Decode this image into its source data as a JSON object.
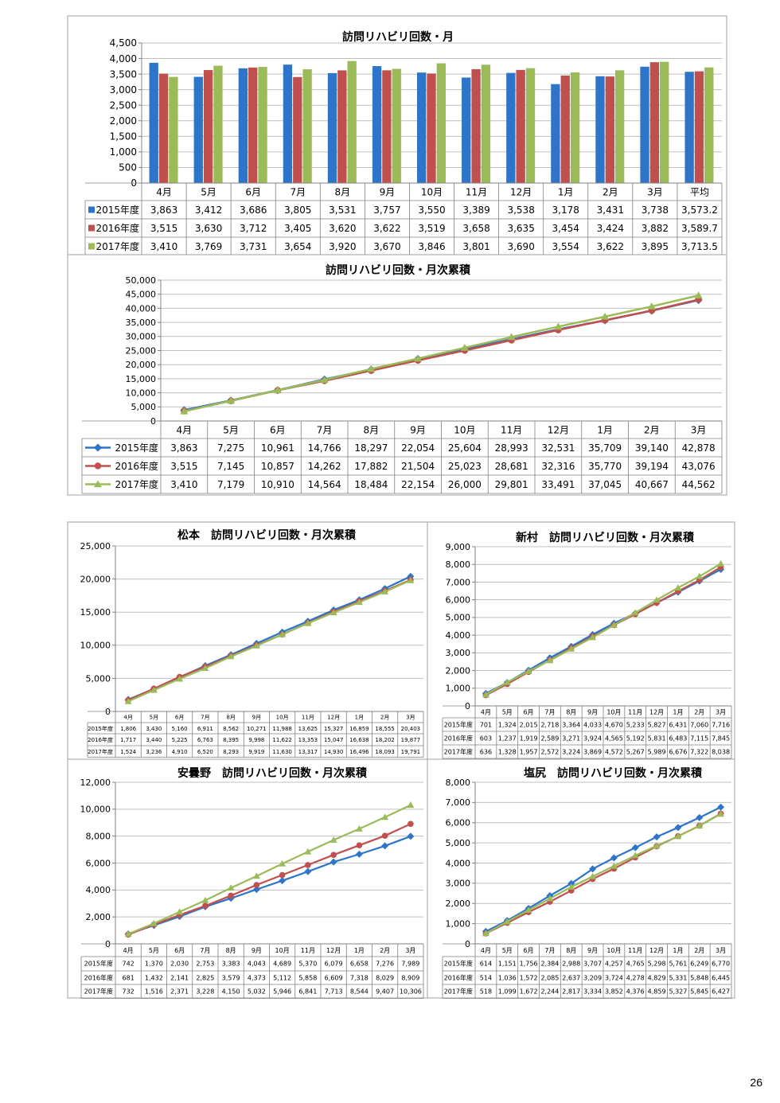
{
  "page": {
    "number": "26"
  },
  "colors": {
    "s2015": "#2E75C9",
    "s2016": "#C0504D",
    "s2017": "#9BBB59",
    "grid": "#bfbfbf",
    "border": "#a0a0a0"
  },
  "chart_data": [
    {
      "type": "bar",
      "title": "訪問リハビリ回数・月",
      "categories": [
        "4月",
        "5月",
        "6月",
        "7月",
        "8月",
        "9月",
        "10月",
        "11月",
        "12月",
        "1月",
        "2月",
        "3月",
        "平均"
      ],
      "ylim": [
        0,
        4500
      ],
      "yticks": [
        "0",
        "500",
        "1,000",
        "1,500",
        "2,000",
        "2,500",
        "3,000",
        "3,500",
        "4,000",
        "4,500"
      ],
      "series": [
        {
          "name": "2015年度",
          "values": [
            3863,
            3412,
            3686,
            3805,
            3531,
            3757,
            3550,
            3389,
            3538,
            3178,
            3431,
            3738,
            3573.2
          ],
          "labels": [
            "3,863",
            "3,412",
            "3,686",
            "3,805",
            "3,531",
            "3,757",
            "3,550",
            "3,389",
            "3,538",
            "3,178",
            "3,431",
            "3,738",
            "3,573.2"
          ]
        },
        {
          "name": "2016年度",
          "values": [
            3515,
            3630,
            3712,
            3405,
            3620,
            3622,
            3519,
            3658,
            3635,
            3454,
            3424,
            3882,
            3589.7
          ],
          "labels": [
            "3,515",
            "3,630",
            "3,712",
            "3,405",
            "3,620",
            "3,622",
            "3,519",
            "3,658",
            "3,635",
            "3,454",
            "3,424",
            "3,882",
            "3,589.7"
          ]
        },
        {
          "name": "2017年度",
          "values": [
            3410,
            3769,
            3731,
            3654,
            3920,
            3670,
            3846,
            3801,
            3690,
            3554,
            3622,
            3895,
            3713.5
          ],
          "labels": [
            "3,410",
            "3,769",
            "3,731",
            "3,654",
            "3,920",
            "3,670",
            "3,846",
            "3,801",
            "3,690",
            "3,554",
            "3,622",
            "3,895",
            "3,713.5"
          ]
        }
      ]
    },
    {
      "type": "line",
      "title": "訪問リハビリ回数・月次累積",
      "categories": [
        "4月",
        "5月",
        "6月",
        "7月",
        "8月",
        "9月",
        "10月",
        "11月",
        "12月",
        "1月",
        "2月",
        "3月"
      ],
      "ylim": [
        0,
        50000
      ],
      "yticks": [
        "0",
        "5,000",
        "10,000",
        "15,000",
        "20,000",
        "25,000",
        "30,000",
        "35,000",
        "40,000",
        "45,000",
        "50,000"
      ],
      "series": [
        {
          "name": "2015年度",
          "values": [
            3863,
            7275,
            10961,
            14766,
            18297,
            22054,
            25604,
            28993,
            32531,
            35709,
            39140,
            42878
          ],
          "labels": [
            "3,863",
            "7,275",
            "10,961",
            "14,766",
            "18,297",
            "22,054",
            "25,604",
            "28,993",
            "32,531",
            "35,709",
            "39,140",
            "42,878"
          ]
        },
        {
          "name": "2016年度",
          "values": [
            3515,
            7145,
            10857,
            14262,
            17882,
            21504,
            25023,
            28681,
            32316,
            35770,
            39194,
            43076
          ],
          "labels": [
            "3,515",
            "7,145",
            "10,857",
            "14,262",
            "17,882",
            "21,504",
            "25,023",
            "28,681",
            "32,316",
            "35,770",
            "39,194",
            "43,076"
          ]
        },
        {
          "name": "2017年度",
          "values": [
            3410,
            7179,
            10910,
            14564,
            18484,
            22154,
            26000,
            29801,
            33491,
            37045,
            40667,
            44562
          ],
          "labels": [
            "3,410",
            "7,179",
            "10,910",
            "14,564",
            "18,484",
            "22,154",
            "26,000",
            "29,801",
            "33,491",
            "37,045",
            "40,667",
            "44,562"
          ]
        }
      ]
    },
    {
      "type": "line",
      "title": "松本　訪問リハビリ回数・月次累積",
      "categories": [
        "4月",
        "5月",
        "6月",
        "7月",
        "8月",
        "9月",
        "10月",
        "11月",
        "12月",
        "1月",
        "2月",
        "3月"
      ],
      "ylim": [
        0,
        25000
      ],
      "yticks": [
        "0",
        "5,000",
        "10,000",
        "15,000",
        "20,000",
        "25,000"
      ],
      "series": [
        {
          "name": "2015年度",
          "values": [
            1806,
            3430,
            5160,
            6911,
            8562,
            10271,
            11988,
            13625,
            15327,
            16859,
            18555,
            20403
          ],
          "labels": [
            "1,806",
            "3,430",
            "5,160",
            "6,911",
            "8,562",
            "10,271",
            "11,988",
            "13,625",
            "15,327",
            "16,859",
            "18,555",
            "20,403"
          ]
        },
        {
          "name": "2016年度",
          "values": [
            1717,
            3440,
            5225,
            6763,
            8395,
            9998,
            11622,
            13353,
            15047,
            16638,
            18202,
            19877
          ],
          "labels": [
            "1,717",
            "3,440",
            "5,225",
            "6,763",
            "8,395",
            "9,998",
            "11,622",
            "13,353",
            "15,047",
            "16,638",
            "18,202",
            "19,877"
          ]
        },
        {
          "name": "2017年度",
          "values": [
            1524,
            3236,
            4910,
            6520,
            8293,
            9919,
            11630,
            13317,
            14930,
            16496,
            18093,
            19791
          ],
          "labels": [
            "1,524",
            "3,236",
            "4,910",
            "6,520",
            "8,293",
            "9,919",
            "11,630",
            "13,317",
            "14,930",
            "16,496",
            "18,093",
            "19,791"
          ]
        }
      ]
    },
    {
      "type": "line",
      "title": "新村　訪問リハビリ回数・月次累積",
      "categories": [
        "4月",
        "5月",
        "6月",
        "7月",
        "8月",
        "9月",
        "10月",
        "11月",
        "12月",
        "1月",
        "2月",
        "3月"
      ],
      "ylim": [
        0,
        9000
      ],
      "yticks": [
        "0",
        "1,000",
        "2,000",
        "3,000",
        "4,000",
        "5,000",
        "6,000",
        "7,000",
        "8,000",
        "9,000"
      ],
      "series": [
        {
          "name": "2015年度",
          "values": [
            701,
            1324,
            2015,
            2718,
            3364,
            4033,
            4670,
            5233,
            5827,
            6431,
            7060,
            7716
          ],
          "labels": [
            "701",
            "1,324",
            "2,015",
            "2,718",
            "3,364",
            "4,033",
            "4,670",
            "5,233",
            "5,827",
            "6,431",
            "7,060",
            "7,716"
          ]
        },
        {
          "name": "2016年度",
          "values": [
            603,
            1237,
            1919,
            2589,
            3271,
            3924,
            4565,
            5192,
            5831,
            6483,
            7115,
            7845
          ],
          "labels": [
            "603",
            "1,237",
            "1,919",
            "2,589",
            "3,271",
            "3,924",
            "4,565",
            "5,192",
            "5,831",
            "6,483",
            "7,115",
            "7,845"
          ]
        },
        {
          "name": "2017年度",
          "values": [
            636,
            1328,
            1957,
            2572,
            3224,
            3869,
            4572,
            5267,
            5989,
            6676,
            7322,
            8038
          ],
          "labels": [
            "636",
            "1,328",
            "1,957",
            "2,572",
            "3,224",
            "3,869",
            "4,572",
            "5,267",
            "5,989",
            "6,676",
            "7,322",
            "8,038"
          ]
        }
      ]
    },
    {
      "type": "line",
      "title": "安曇野　訪問リハビリ回数・月次累積",
      "categories": [
        "4月",
        "5月",
        "6月",
        "7月",
        "8月",
        "9月",
        "10月",
        "11月",
        "12月",
        "1月",
        "2月",
        "3月"
      ],
      "ylim": [
        0,
        12000
      ],
      "yticks": [
        "0",
        "2,000",
        "4,000",
        "6,000",
        "8,000",
        "10,000",
        "12,000"
      ],
      "series": [
        {
          "name": "2015年度",
          "values": [
            742,
            1370,
            2030,
            2753,
            3383,
            4043,
            4689,
            5370,
            6079,
            6658,
            7276,
            7989
          ],
          "labels": [
            "742",
            "1,370",
            "2,030",
            "2,753",
            "3,383",
            "4,043",
            "4,689",
            "5,370",
            "6,079",
            "6,658",
            "7,276",
            "7,989"
          ]
        },
        {
          "name": "2016年度",
          "values": [
            681,
            1432,
            2141,
            2825,
            3579,
            4373,
            5112,
            5858,
            6609,
            7318,
            8029,
            8909
          ],
          "labels": [
            "681",
            "1,432",
            "2,141",
            "2,825",
            "3,579",
            "4,373",
            "5,112",
            "5,858",
            "6,609",
            "7,318",
            "8,029",
            "8,909"
          ]
        },
        {
          "name": "2017年度",
          "values": [
            732,
            1516,
            2371,
            3228,
            4150,
            5032,
            5946,
            6841,
            7713,
            8544,
            9407,
            10306
          ],
          "labels": [
            "732",
            "1,516",
            "2,371",
            "3,228",
            "4,150",
            "5,032",
            "5,946",
            "6,841",
            "7,713",
            "8,544",
            "9,407",
            "10,306"
          ]
        }
      ]
    },
    {
      "type": "line",
      "title": "塩尻　訪問リハビリ回数・月次累積",
      "categories": [
        "4月",
        "5月",
        "6月",
        "7月",
        "8月",
        "9月",
        "10月",
        "11月",
        "12月",
        "1月",
        "2月",
        "3月"
      ],
      "ylim": [
        0,
        8000
      ],
      "yticks": [
        "0",
        "1,000",
        "2,000",
        "3,000",
        "4,000",
        "5,000",
        "6,000",
        "7,000",
        "8,000"
      ],
      "series": [
        {
          "name": "2015年度",
          "values": [
            614,
            1151,
            1756,
            2384,
            2988,
            3707,
            4257,
            4765,
            5298,
            5761,
            6249,
            6770
          ],
          "labels": [
            "614",
            "1,151",
            "1,756",
            "2,384",
            "2,988",
            "3,707",
            "4,257",
            "4,765",
            "5,298",
            "5,761",
            "6,249",
            "6,770"
          ]
        },
        {
          "name": "2016年度",
          "values": [
            514,
            1036,
            1572,
            2085,
            2637,
            3209,
            3724,
            4278,
            4829,
            5331,
            5848,
            6445
          ],
          "labels": [
            "514",
            "1,036",
            "1,572",
            "2,085",
            "2,637",
            "3,209",
            "3,724",
            "4,278",
            "4,829",
            "5,331",
            "5,848",
            "6,445"
          ]
        },
        {
          "name": "2017年度",
          "values": [
            518,
            1099,
            1672,
            2244,
            2817,
            3334,
            3852,
            4376,
            4859,
            5327,
            5845,
            6427
          ],
          "labels": [
            "518",
            "1,099",
            "1,672",
            "2,244",
            "2,817",
            "3,334",
            "3,852",
            "4,376",
            "4,859",
            "5,327",
            "5,845",
            "6,427"
          ]
        }
      ]
    }
  ]
}
